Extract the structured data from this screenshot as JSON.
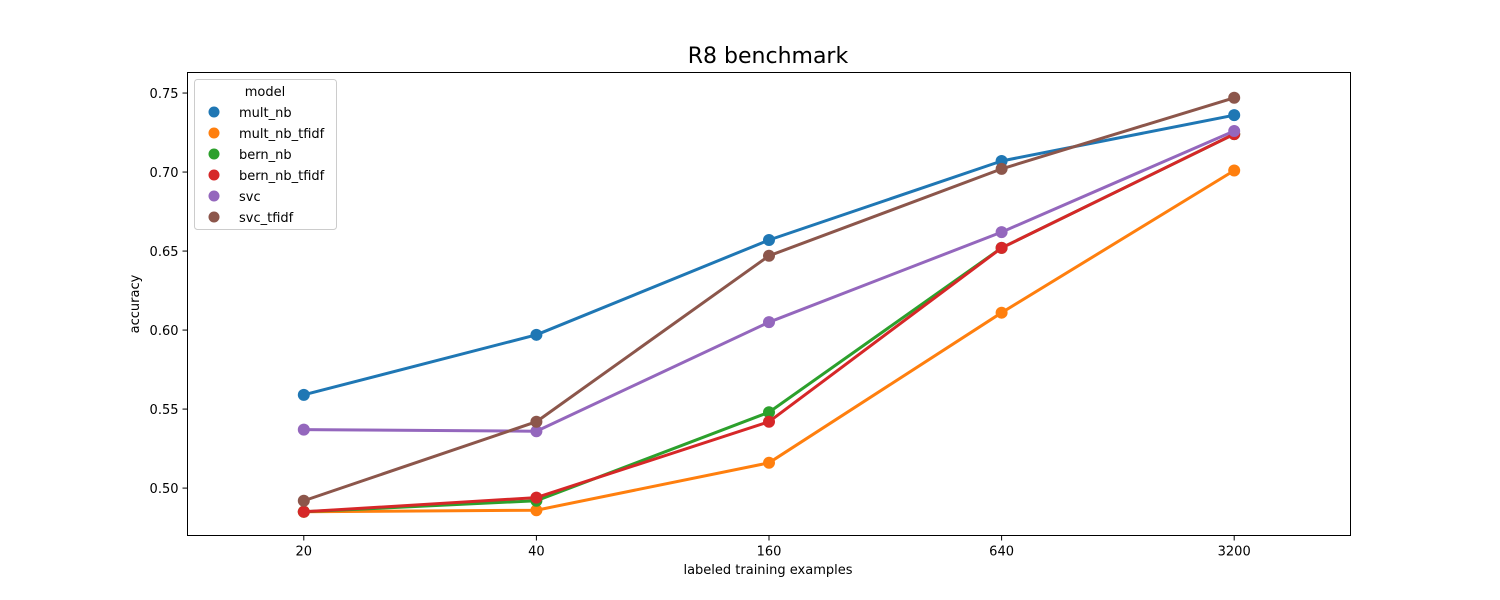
{
  "chart_data": {
    "type": "line",
    "title": "R8 benchmark",
    "xlabel": "labeled training examples",
    "ylabel": "accuracy",
    "categories": [
      "20",
      "40",
      "160",
      "640",
      "3200"
    ],
    "ylim": [
      0.47,
      0.763
    ],
    "yticks": [
      "0.50",
      "0.55",
      "0.60",
      "0.65",
      "0.70",
      "0.75"
    ],
    "grid": false,
    "legend": {
      "title": "model",
      "placement": "top-left"
    },
    "series": [
      {
        "name": "mult_nb",
        "color": "#1f77b4",
        "values": [
          0.559,
          0.597,
          0.657,
          0.707,
          0.736
        ]
      },
      {
        "name": "mult_nb_tfidf",
        "color": "#ff7f0e",
        "values": [
          0.485,
          0.486,
          0.516,
          0.611,
          0.701
        ]
      },
      {
        "name": "bern_nb",
        "color": "#2ca02c",
        "values": [
          0.485,
          0.492,
          0.548,
          0.652,
          0.724
        ]
      },
      {
        "name": "bern_nb_tfidf",
        "color": "#d62728",
        "values": [
          0.485,
          0.494,
          0.542,
          0.652,
          0.724
        ]
      },
      {
        "name": "svc",
        "color": "#9467bd",
        "values": [
          0.537,
          0.536,
          0.605,
          0.662,
          0.726
        ]
      },
      {
        "name": "svc_tfidf",
        "color": "#8c564b",
        "values": [
          0.492,
          0.542,
          0.647,
          0.702,
          0.747
        ]
      }
    ]
  }
}
